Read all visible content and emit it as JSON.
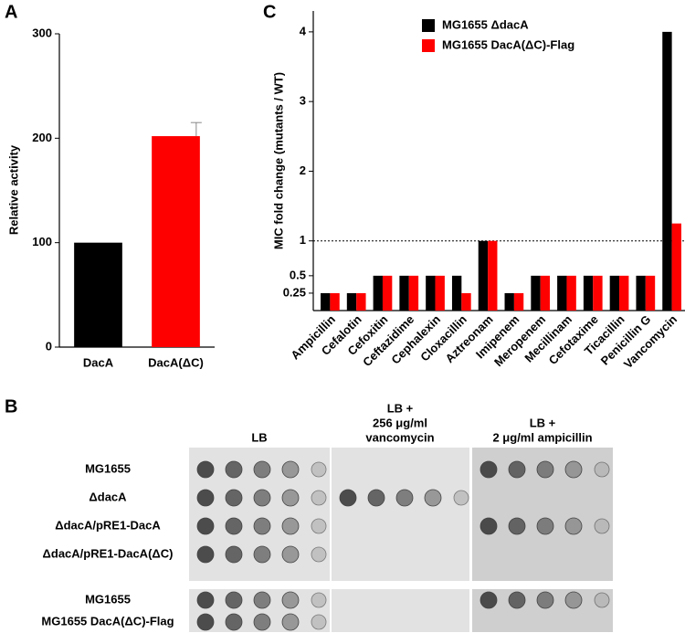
{
  "chart_data": [
    {
      "type": "bar",
      "panel_label": "A",
      "y_label": "Relative activity",
      "categories": [
        "DacA",
        "DacA(ΔC)"
      ],
      "values": [
        100,
        202
      ],
      "errors": [
        null,
        13
      ],
      "colors": [
        "#000000",
        "#ff0000"
      ],
      "ylim": [
        0,
        300
      ],
      "yticks": [
        0,
        100,
        200,
        300
      ]
    },
    {
      "type": "grouped_bar",
      "panel_label": "C",
      "y_label": "MIC fold change (mutants / WT)",
      "categories": [
        "Ampicillin",
        "Cefalotin",
        "Cefoxitin",
        "Ceftazidime",
        "Cephalexin",
        "Cloxacillin",
        "Aztreonam",
        "Imipenem",
        "Meropenem",
        "Mecillinam",
        "Cefotaxime",
        "Ticacillin",
        "Penicillin G",
        "Vancomycin"
      ],
      "series": [
        {
          "name": "MG1655 ΔdacA",
          "color": "#000000",
          "values": [
            0.25,
            0.25,
            0.5,
            0.5,
            0.5,
            0.5,
            1,
            0.25,
            0.5,
            0.5,
            0.5,
            0.5,
            0.5,
            4
          ]
        },
        {
          "name": "MG1655 DacA(ΔC)-Flag",
          "color": "#ff0000",
          "values": [
            0.25,
            0.25,
            0.5,
            0.5,
            0.5,
            0.25,
            1,
            0.25,
            0.5,
            0.5,
            0.5,
            0.5,
            0.5,
            1.25
          ]
        }
      ],
      "ylim": [
        0,
        4.3
      ],
      "yticks": [
        0.25,
        0.5,
        1,
        2,
        3,
        4
      ],
      "reference_line": 1,
      "legend": "upper right"
    }
  ],
  "plate_assay": {
    "panel_label": "B",
    "columns": [
      [
        "LB"
      ],
      [
        "LB +",
        "256 μg/ml",
        "vancomycin"
      ],
      [
        "LB +",
        "2 μg/ml ampicillin"
      ]
    ],
    "rows": [
      "MG1655",
      "ΔdacA",
      "ΔdacA/pRE1-DacA",
      "ΔdacA/pRE1-DacA(ΔC)",
      "MG1655",
      "MG1655 DacA(ΔC)-Flag"
    ]
  }
}
